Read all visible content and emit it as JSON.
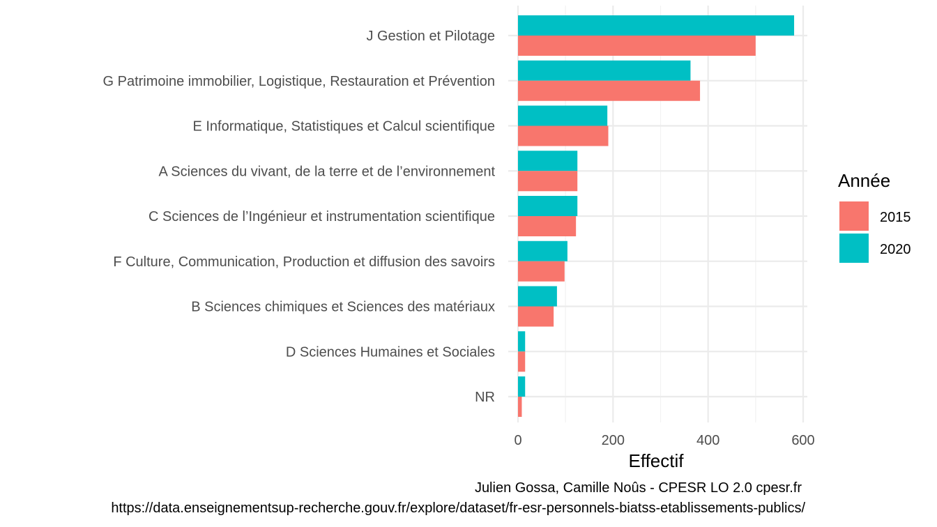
{
  "chart_data": {
    "type": "bar",
    "orientation": "horizontal",
    "categories": [
      "J Gestion et Pilotage",
      "G Patrimoine immobilier, Logistique, Restauration et Prévention",
      "E Informatique, Statistiques et Calcul scientifique",
      "A Sciences du vivant, de la terre et de l’environnement",
      "C Sciences de l’Ingénieur et  instrumentation scientifique",
      "F Culture, Communication, Production et diffusion des savoirs",
      "B Sciences chimiques et Sciences des matériaux",
      "D Sciences Humaines et Sociales",
      "NR"
    ],
    "series": [
      {
        "name": "2015",
        "color": "#F8766D",
        "values": [
          500,
          383,
          190,
          125,
          122,
          98,
          75,
          15,
          8
        ]
      },
      {
        "name": "2020",
        "color": "#00BFC4",
        "values": [
          581,
          363,
          188,
          125,
          125,
          104,
          82,
          15,
          15
        ]
      }
    ],
    "xlabel": "Effectif",
    "ylabel": "",
    "xlim": [
      0,
      610
    ],
    "xticks": [
      0,
      200,
      400,
      600
    ],
    "grid": true,
    "legend": {
      "title": "Année",
      "position": "right"
    },
    "caption": [
      "Julien Gossa, Camille Noûs - CPESR LO 2.0 cpesr.fr",
      "https://data.enseignementsup-recherche.gouv.fr/explore/dataset/fr-esr-personnels-biatss-etablissements-publics/"
    ]
  }
}
